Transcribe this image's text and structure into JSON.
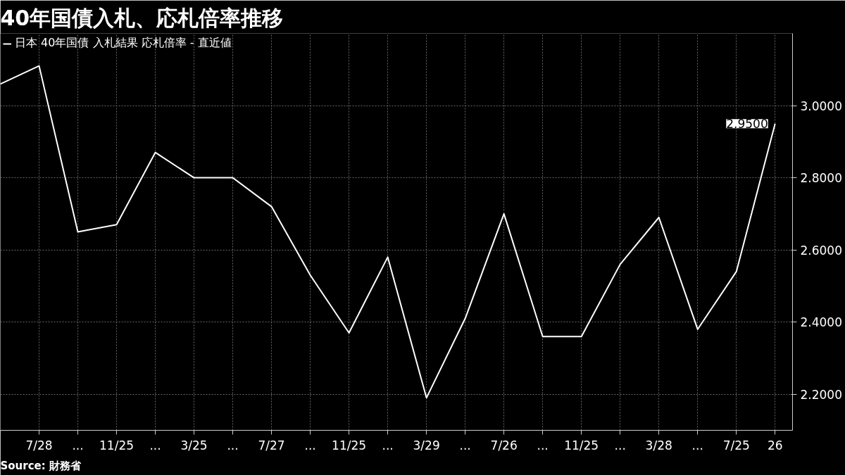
{
  "chart_data": {
    "type": "line",
    "title": "40年国債入札、応札倍率推移",
    "categories": [
      null,
      "7/28",
      "...",
      "11/25",
      "...",
      "3/25",
      "...",
      "7/27",
      "...",
      "11/25",
      "...",
      "3/29",
      "...",
      "7/26",
      "...",
      "11/25",
      "...",
      "3/28",
      "...",
      "7/25",
      "26"
    ],
    "series": [
      {
        "name": "日本 40年国債 入札結果 応札倍率 - 直近値",
        "color": "#ffffff",
        "values": [
          3.06,
          3.11,
          2.65,
          2.67,
          2.87,
          2.8,
          2.8,
          2.72,
          2.53,
          2.37,
          2.58,
          2.19,
          2.41,
          2.7,
          2.36,
          2.36,
          2.56,
          2.69,
          2.38,
          2.54,
          2.95
        ],
        "value_labels": [
          null,
          null,
          null,
          null,
          null,
          null,
          null,
          null,
          null,
          null,
          null,
          null,
          null,
          null,
          null,
          null,
          null,
          null,
          null,
          null,
          "2.9500"
        ]
      }
    ],
    "ylim": [
      2.1,
      3.2
    ],
    "yticks": [
      {
        "value": 2.2,
        "label": "2.2000"
      },
      {
        "value": 2.4,
        "label": "2.4000"
      },
      {
        "value": 2.6,
        "label": "2.6000"
      },
      {
        "value": 2.8,
        "label": "2.8000"
      },
      {
        "value": 3.0,
        "label": "3.0000"
      }
    ],
    "grid": true,
    "legend": "top left",
    "marker": "none",
    "line_style": "solid",
    "annotations": [
      "Source: 財務省"
    ]
  }
}
